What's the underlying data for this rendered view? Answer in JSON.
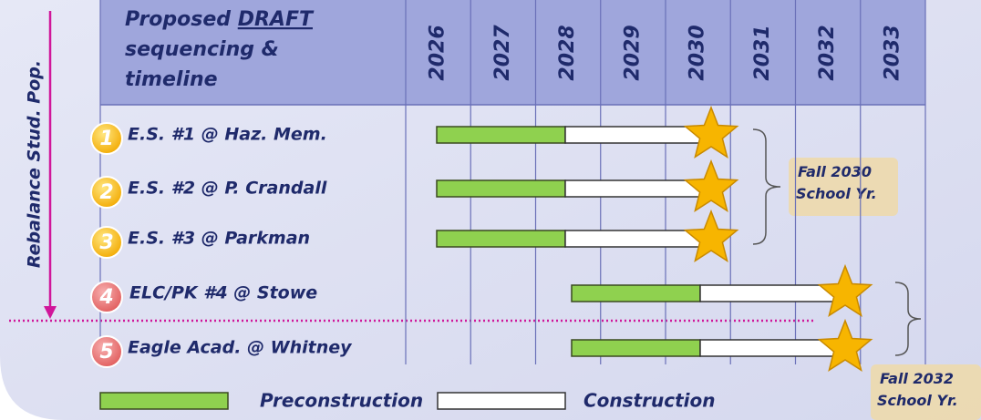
{
  "header": {
    "title_lines": [
      "Proposed",
      "DRAFT",
      "sequencing &",
      "timeline"
    ]
  },
  "years": [
    "2026",
    "2027",
    "2028",
    "2029",
    "2030",
    "2031",
    "2032",
    "2033"
  ],
  "side_label": "Rebalance Stud. Pop.",
  "rows": [
    {
      "number": "1",
      "label": "E.S. #1 @ Haz. Mem."
    },
    {
      "number": "2",
      "label": "E.S. #2 @ P. Crandall"
    },
    {
      "number": "3",
      "label": "E.S. #3 @ Parkman"
    },
    {
      "number": "4",
      "label": "ELC/PK #4 @ Stowe"
    },
    {
      "number": "5",
      "label": "Eagle Acad. @ Whitney"
    }
  ],
  "notes": [
    {
      "lines": [
        "Fall 2030",
        "School Yr."
      ]
    },
    {
      "lines": [
        "Fall 2032",
        "School Yr."
      ]
    }
  ],
  "legend": {
    "preconstruction": "Preconstruction",
    "construction": "Construction"
  }
}
